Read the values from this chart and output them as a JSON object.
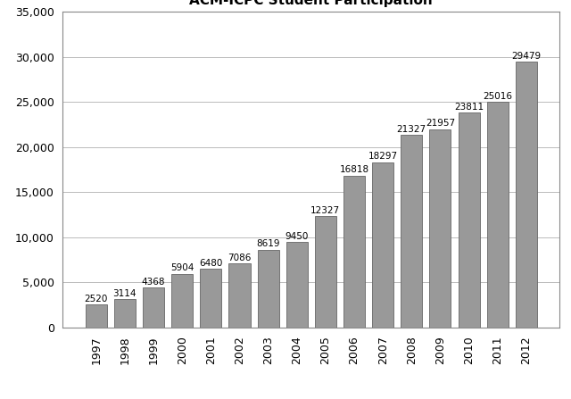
{
  "title": "ACM-ICPC Student Participation",
  "years": [
    1997,
    1998,
    1999,
    2000,
    2001,
    2002,
    2003,
    2004,
    2005,
    2006,
    2007,
    2008,
    2009,
    2010,
    2011,
    2012
  ],
  "values": [
    2520,
    3114,
    4368,
    5904,
    6480,
    7086,
    8619,
    9450,
    12327,
    16818,
    18297,
    21327,
    21957,
    23811,
    25016,
    29479
  ],
  "bar_color": "#999999",
  "bar_edge_color": "#666666",
  "ylim": [
    0,
    35000
  ],
  "yticks": [
    0,
    5000,
    10000,
    15000,
    20000,
    25000,
    30000,
    35000
  ],
  "background_color": "#ffffff",
  "title_fontsize": 11,
  "label_fontsize": 7.5,
  "tick_fontsize": 9,
  "grid_color": "#bbbbbb",
  "spine_color": "#888888"
}
